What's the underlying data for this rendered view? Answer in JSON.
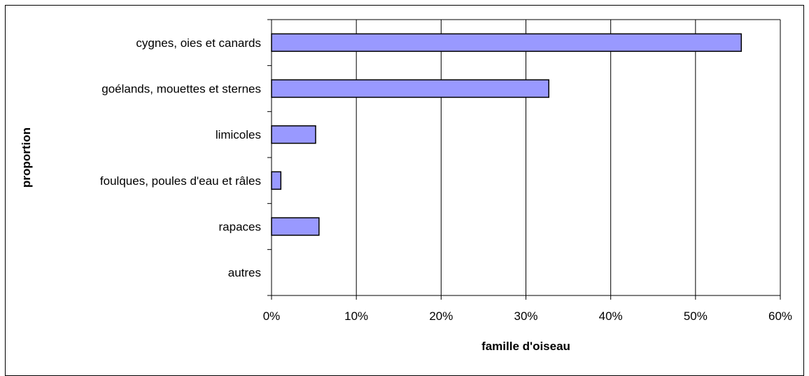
{
  "chart_data": {
    "type": "bar",
    "orientation": "horizontal",
    "title": "",
    "xlabel": "famille d'oiseau",
    "ylabel": "proportion",
    "categories": [
      "cygnes, oies et canards",
      "goélands, mouettes et sternes",
      "limicoles",
      "foulques, poules d'eau et râles",
      "rapaces",
      "autres"
    ],
    "values": [
      55.4,
      32.7,
      5.2,
      1.1,
      5.6,
      0
    ],
    "xlim": [
      0,
      60
    ],
    "xticks": [
      "0%",
      "10%",
      "20%",
      "30%",
      "40%",
      "50%",
      "60%"
    ],
    "grid": "vertical",
    "legend": "none",
    "bar_color": "#9999ff"
  }
}
